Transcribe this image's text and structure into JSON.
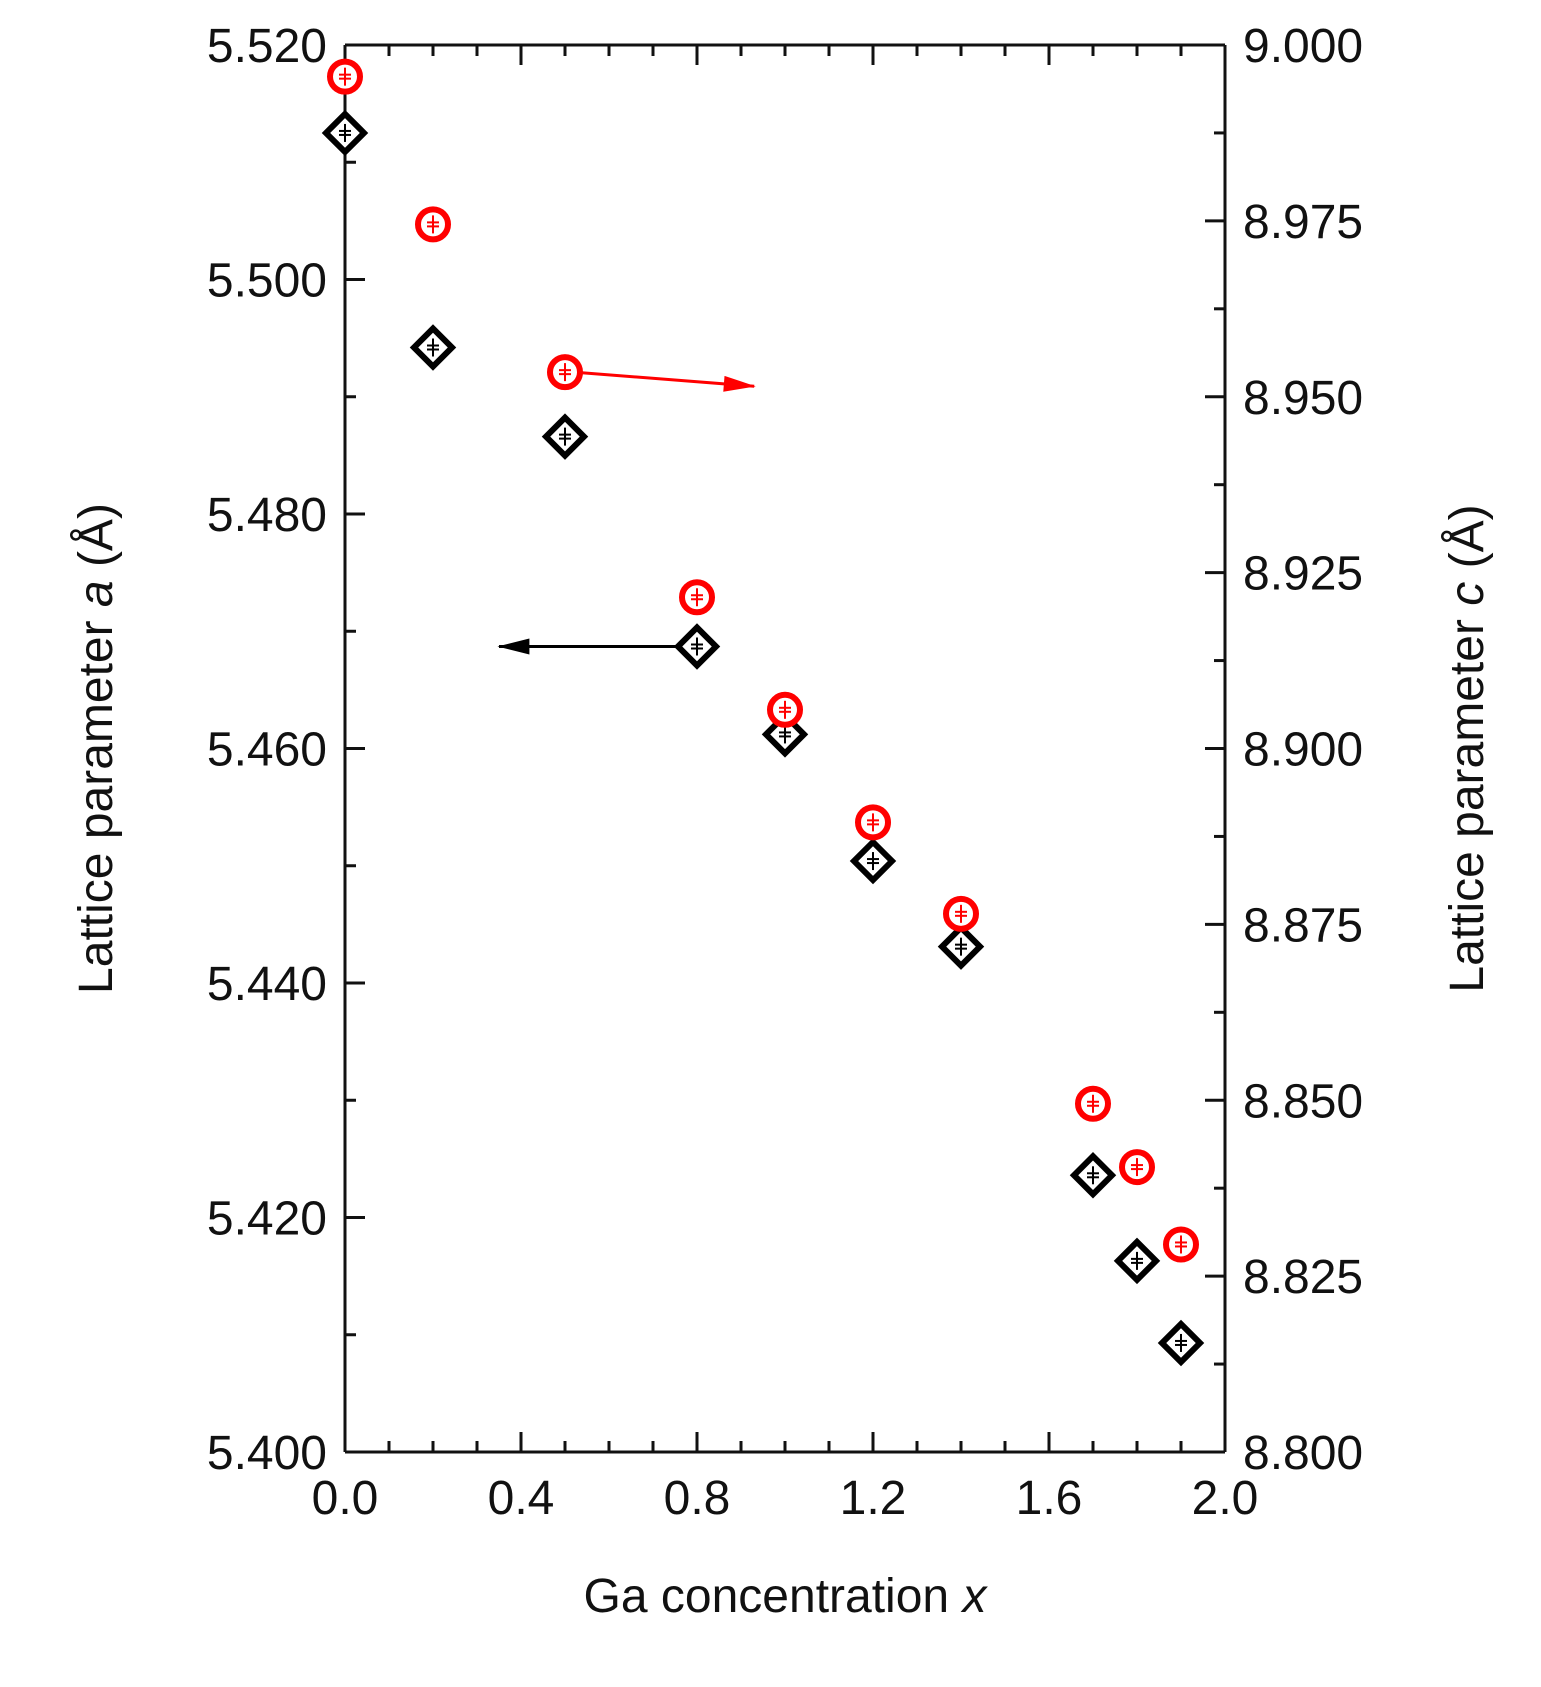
{
  "chart_data": {
    "type": "scatter",
    "title": "",
    "xlabel": "Ga concentration",
    "xlabel_var": "x",
    "ylabel_left": {
      "prefix": "Lattice parameter ",
      "var": "a",
      "suffix": " (Å)"
    },
    "ylabel_right": {
      "prefix": "Lattice parameter ",
      "var": "c",
      "suffix": " (Å)"
    },
    "xlim": [
      0.0,
      2.0
    ],
    "ylim_left": [
      5.4,
      5.52
    ],
    "ylim_right": [
      8.8,
      9.0
    ],
    "x_ticks": [
      "0.0",
      "0.4",
      "0.8",
      "1.2",
      "1.6",
      "2.0"
    ],
    "y_left_ticks": [
      "5.400",
      "5.420",
      "5.440",
      "5.460",
      "5.480",
      "5.500",
      "5.520"
    ],
    "y_right_ticks": [
      "8.800",
      "8.825",
      "8.850",
      "8.875",
      "8.900",
      "8.925",
      "8.950",
      "8.975",
      "9.000"
    ],
    "grid": false,
    "series": [
      {
        "name": "a",
        "axis": "left",
        "marker": "diamond",
        "color": "#000000",
        "x": [
          0.0,
          0.2,
          0.5,
          0.8,
          1.0,
          1.2,
          1.4,
          1.7,
          1.8,
          1.9
        ],
        "values": [
          5.5125,
          5.4942,
          5.4866,
          5.4687,
          5.4612,
          5.4504,
          5.4431,
          5.4236,
          5.4163,
          5.4093
        ]
      },
      {
        "name": "c",
        "axis": "right",
        "marker": "circle",
        "color": "#ff0000",
        "x": [
          0.0,
          0.2,
          0.5,
          0.8,
          1.0,
          1.2,
          1.4,
          1.7,
          1.8,
          1.9
        ],
        "values": [
          8.9955,
          8.9745,
          8.9535,
          8.9215,
          8.9055,
          8.8895,
          8.8765,
          8.8495,
          8.8405,
          8.8295
        ]
      }
    ],
    "annotations": [
      {
        "type": "arrow",
        "color": "#ff0000",
        "points_to": "right axis",
        "from": [
          0.52,
          8.9535
        ],
        "to": [
          0.93,
          8.9515
        ]
      },
      {
        "type": "arrow",
        "color": "#000000",
        "points_to": "left axis",
        "from": [
          0.8,
          5.4687
        ],
        "to": [
          0.35,
          5.4687
        ]
      }
    ]
  }
}
